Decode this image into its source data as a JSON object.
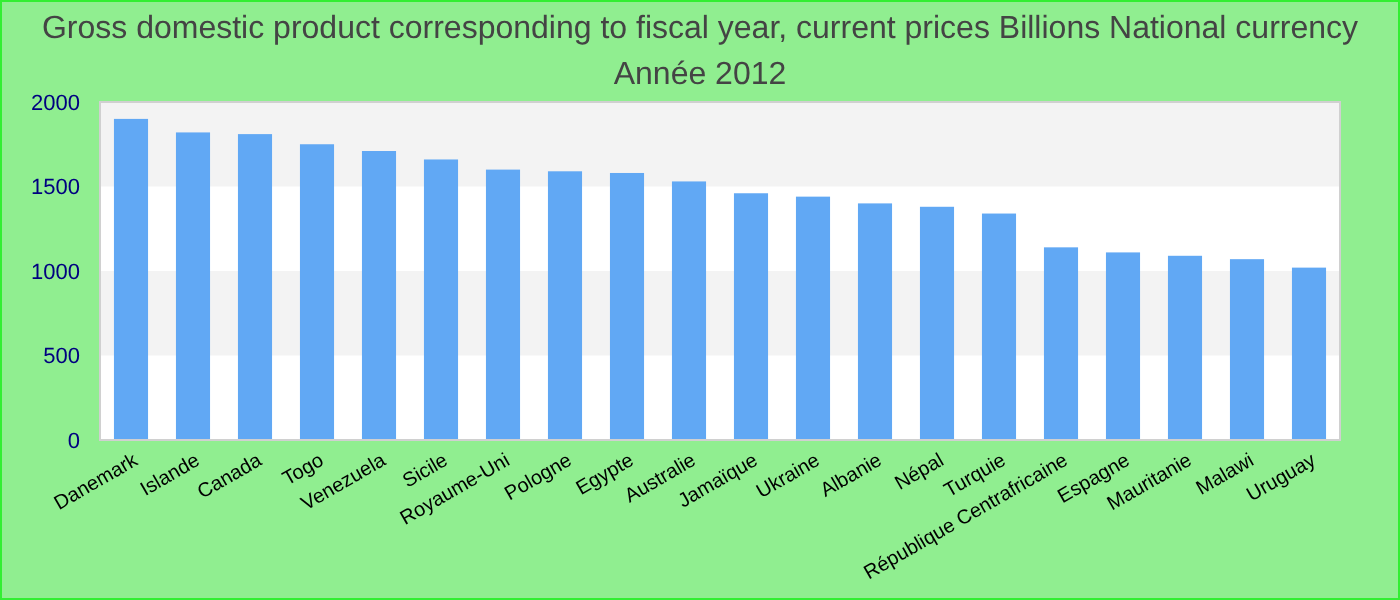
{
  "chart_data": {
    "type": "bar",
    "title": "Gross domestic product corresponding to fiscal year, current prices Billions National currency",
    "subtitle": "Année 2012",
    "categories": [
      "Danemark",
      "Islande",
      "Canada",
      "Togo",
      "Venezuela",
      "Sicile",
      "Royaume-Uni",
      "Pologne",
      "Egypte",
      "Australie",
      "Jamaïque",
      "Ukraine",
      "Albanie",
      "Népal",
      "Turquie",
      "République Centrafricaine",
      "Espagne",
      "Mauritanie",
      "Malawi",
      "Uruguay"
    ],
    "values": [
      1900,
      1820,
      1810,
      1750,
      1710,
      1660,
      1600,
      1590,
      1580,
      1530,
      1460,
      1440,
      1400,
      1380,
      1340,
      1140,
      1110,
      1090,
      1070,
      1020
    ],
    "color": "#61a8f4",
    "ylim": [
      0,
      2000
    ],
    "yticks": [
      0,
      500,
      1000,
      1500,
      2000
    ]
  }
}
